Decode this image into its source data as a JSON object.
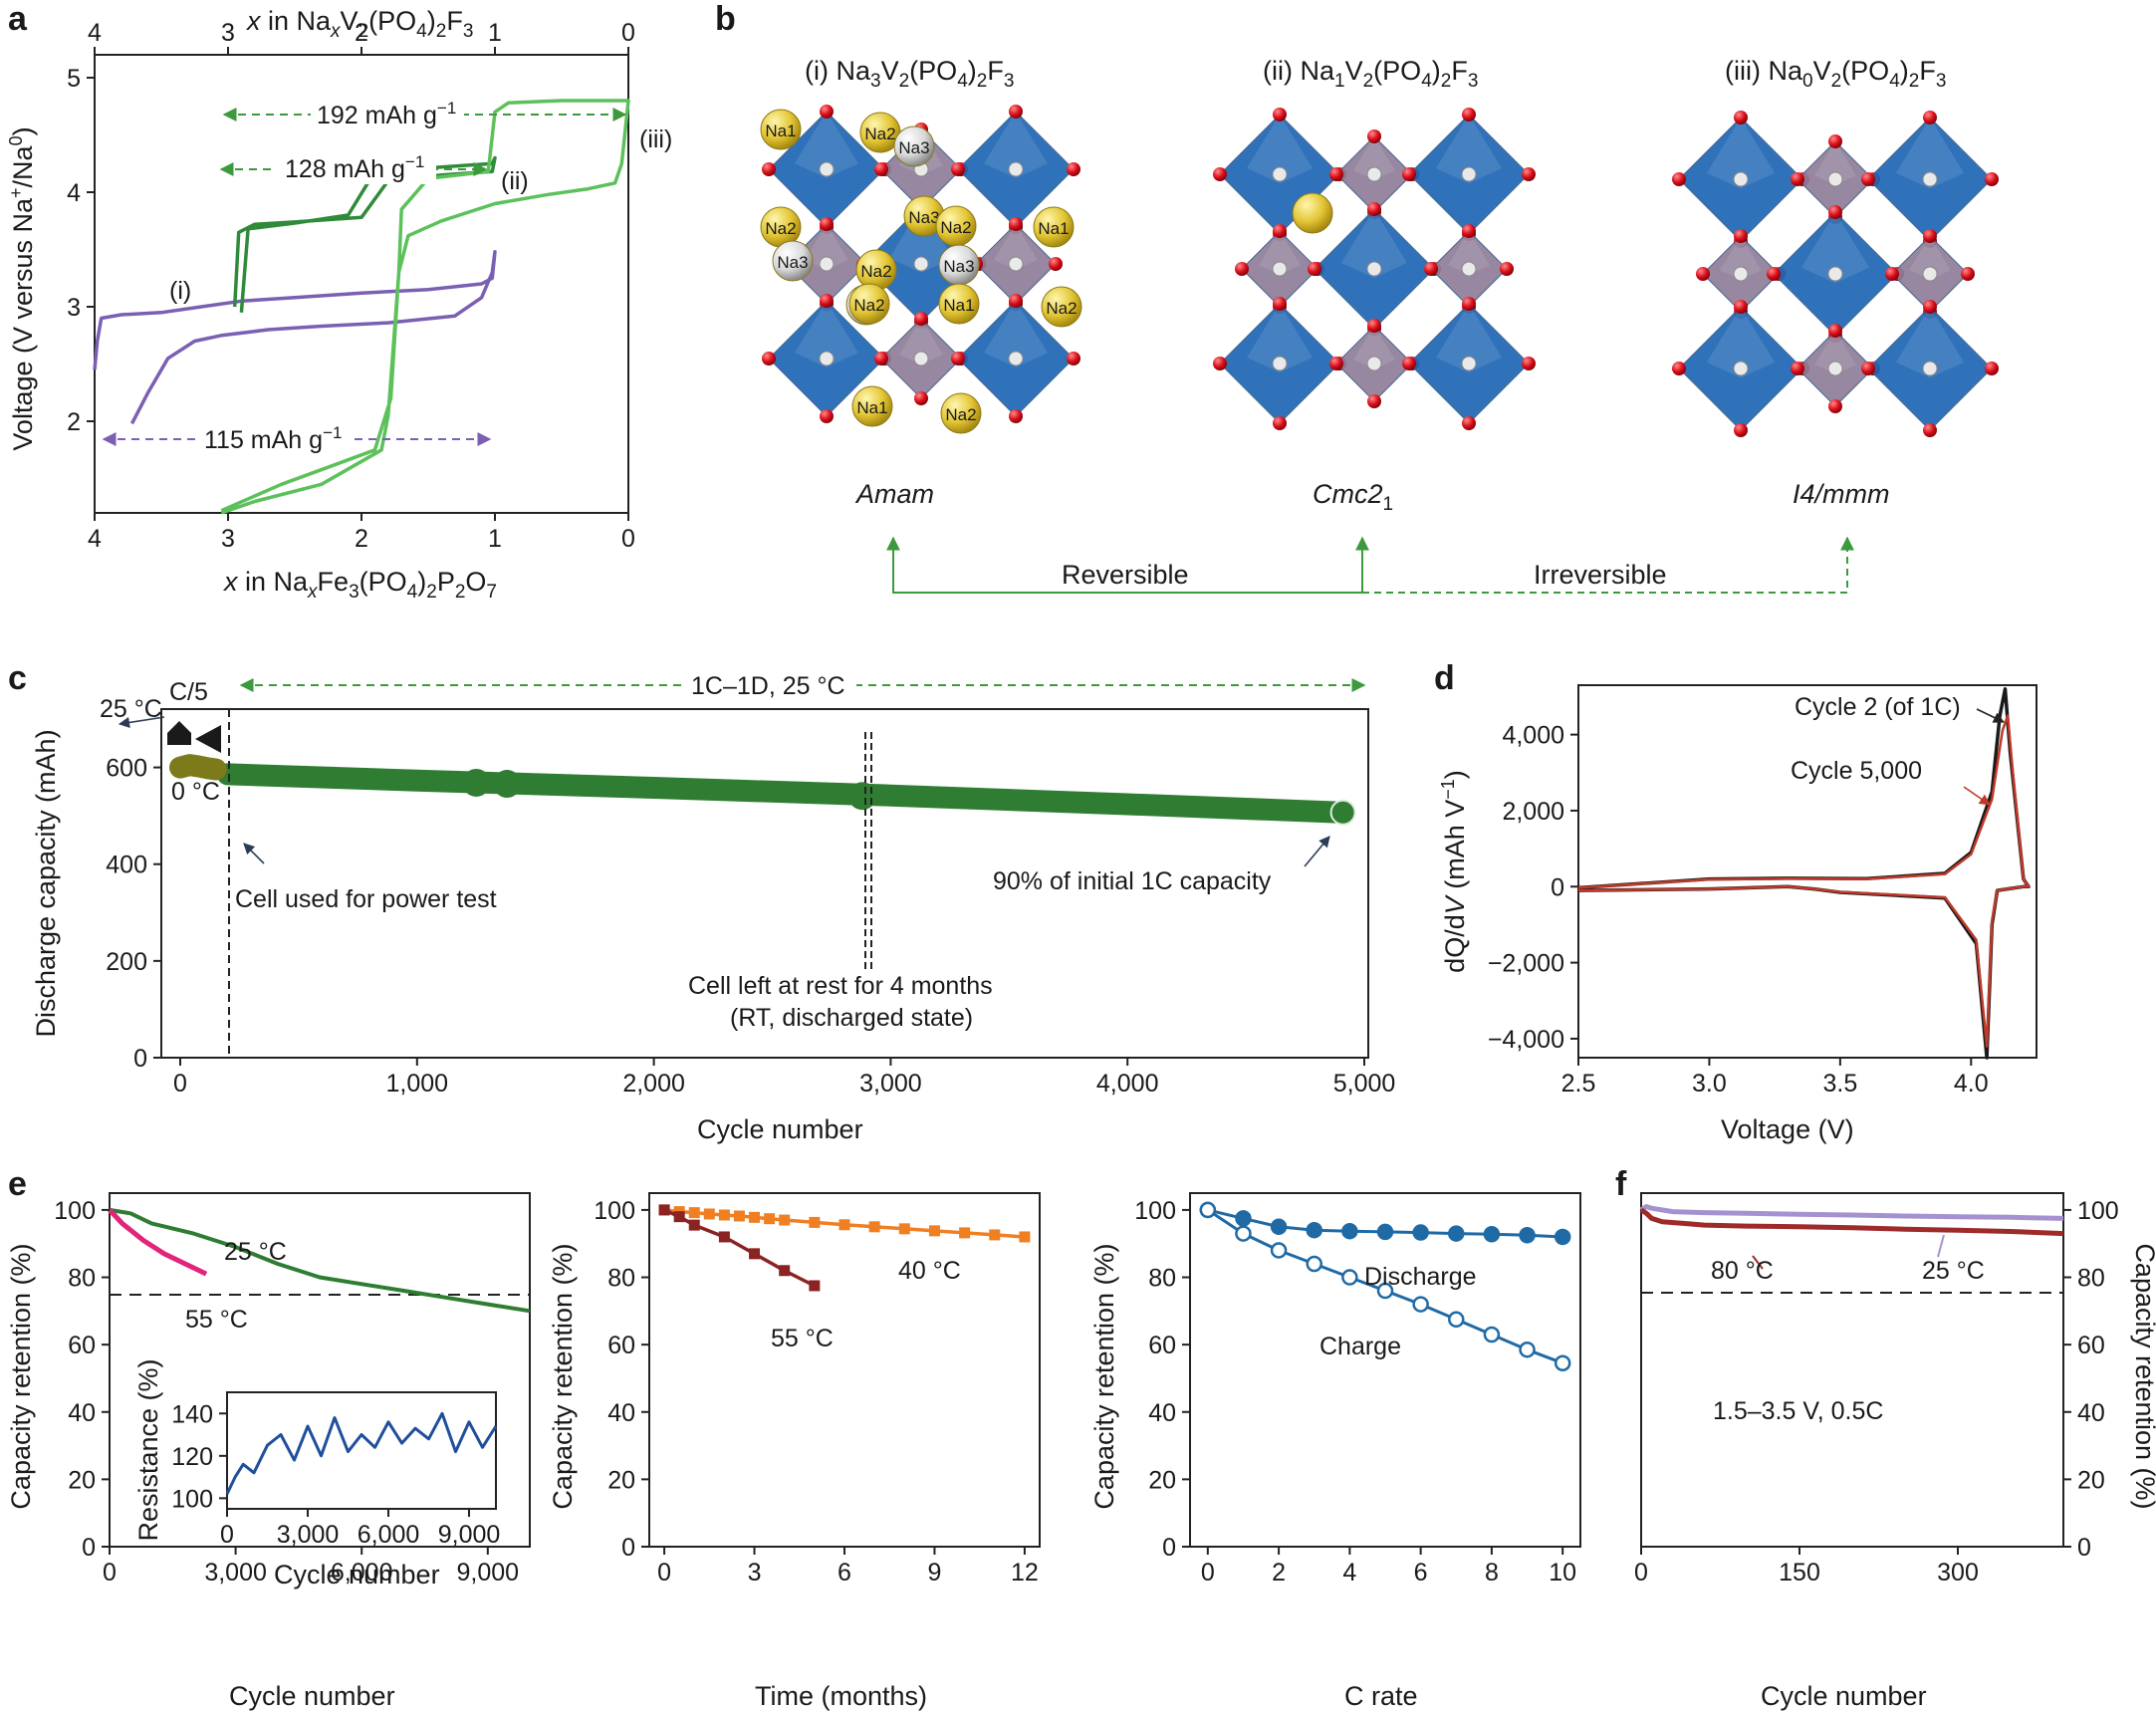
{
  "panel_labels": {
    "a": "a",
    "b": "b",
    "c": "c",
    "d": "d",
    "e": "e",
    "f": "f"
  },
  "chart_data": [
    {
      "id": "a",
      "type": "line",
      "xlabel_bottom": "x in NaxFe3(PO4)2P2O7",
      "xlabel_top": "x in NaxV2(PO4)2F3",
      "ylabel": "Voltage (V versus Na+/Na0)",
      "xlim": [
        4,
        0
      ],
      "ylim": [
        1.2,
        5.2
      ],
      "xticks": [
        "4",
        "3",
        "2",
        "1",
        "0"
      ],
      "yticks": [
        "2",
        "3",
        "4",
        "5"
      ],
      "series": [
        {
          "name": "(i)",
          "color": "#7b5fb3",
          "x": [
            3.72,
            3.6,
            3.45,
            3.25,
            3.05,
            2.9,
            2.7,
            2.3,
            1.8,
            1.3,
            1.1,
            1.02,
            1.0,
            1.02,
            1.1,
            1.5,
            2.0,
            2.5,
            2.9,
            3.2,
            3.5,
            3.8,
            3.95,
            3.98,
            4.0
          ],
          "y": [
            1.98,
            2.25,
            2.55,
            2.7,
            2.75,
            2.77,
            2.8,
            2.83,
            2.86,
            2.92,
            3.08,
            3.3,
            3.48,
            3.25,
            3.2,
            3.15,
            3.12,
            3.08,
            3.05,
            3.0,
            2.95,
            2.93,
            2.9,
            2.7,
            2.45
          ]
        },
        {
          "name": "(ii)",
          "color": "#2f8a3a",
          "x": [
            2.95,
            2.92,
            2.8,
            2.5,
            2.0,
            1.8,
            1.4,
            1.02,
            1.0,
            1.02,
            1.4,
            1.9,
            2.1,
            2.5,
            2.85,
            2.9
          ],
          "y": [
            3.0,
            3.65,
            3.72,
            3.74,
            3.78,
            4.1,
            4.15,
            4.18,
            4.3,
            4.25,
            4.22,
            4.18,
            3.8,
            3.73,
            3.68,
            2.95
          ]
        },
        {
          "name": "(iii)",
          "color": "#5cc15a",
          "x": [
            3.05,
            2.6,
            2.2,
            1.9,
            1.78,
            1.72,
            1.65,
            1.4,
            1.0,
            0.6,
            0.3,
            0.1,
            0.05,
            0.0,
            0.5,
            0.9,
            1.0,
            1.05,
            1.5,
            1.7,
            1.72,
            1.8,
            1.85,
            2.3,
            2.8,
            3.05
          ],
          "y": [
            1.22,
            1.45,
            1.62,
            1.75,
            2.2,
            3.3,
            3.62,
            3.75,
            3.9,
            3.98,
            4.03,
            4.08,
            4.25,
            4.8,
            4.8,
            4.78,
            4.7,
            4.18,
            4.12,
            3.85,
            3.3,
            2.05,
            1.75,
            1.45,
            1.3,
            1.2
          ]
        }
      ],
      "annotations": [
        "(i)",
        "(ii)",
        "(iii)",
        "192 mAh g−1",
        "128 mAh g−1",
        "115 mAh g−1"
      ]
    },
    {
      "id": "c",
      "type": "scatter",
      "xlabel": "Cycle number",
      "ylabel": "Discharge capacity (mAh)",
      "xlim": [
        0,
        5000
      ],
      "ylim": [
        0,
        700
      ],
      "xticks": [
        "0",
        "1,000",
        "2,000",
        "3,000",
        "4,000",
        "5,000"
      ],
      "yticks": [
        "0",
        "200",
        "400",
        "600"
      ],
      "series": [
        {
          "name": "1C–1D, 25 °C",
          "color": "#2e7d32",
          "x": [
            200,
            1000,
            2000,
            3000,
            4000,
            4900
          ],
          "y": [
            586,
            573,
            558,
            542,
            524,
            507
          ]
        },
        {
          "name": "0 °C",
          "color": "#7c7a1a",
          "x": [
            0,
            40,
            80,
            120,
            150
          ],
          "y": [
            600,
            605,
            602,
            598,
            596
          ]
        }
      ],
      "annotations": [
        "C/5",
        "1C–1D, 25 °C",
        "25 °C",
        "0 °C",
        "Cell used for power test",
        "Cell left at rest for 4 months",
        "(RT, discharged state)",
        "90% of initial 1C capacity"
      ]
    },
    {
      "id": "d",
      "type": "line",
      "xlabel": "Voltage (V)",
      "ylabel": "dQ/dV (mAh V−1)",
      "xlim": [
        2.5,
        4.25
      ],
      "ylim": [
        -4500,
        5300
      ],
      "xticks": [
        "2.5",
        "3.0",
        "3.5",
        "4.0"
      ],
      "yticks": [
        "−4,000",
        "−2,000",
        "0",
        "2,000",
        "4,000"
      ],
      "series": [
        {
          "name": "Cycle 2 (of 1C)",
          "color": "#1a1a1a",
          "x": [
            2.5,
            3.0,
            3.3,
            3.6,
            3.9,
            4.0,
            4.08,
            4.11,
            4.13,
            4.15,
            4.2,
            4.22,
            4.2,
            4.1,
            4.08,
            4.06,
            4.02,
            3.9,
            3.5,
            3.4,
            3.3,
            3.0,
            2.5
          ],
          "y": [
            -30,
            200,
            220,
            210,
            350,
            900,
            2500,
            4500,
            5200,
            3500,
            200,
            0,
            0,
            -100,
            -1000,
            -4500,
            -1500,
            -300,
            -150,
            -60,
            0,
            -60,
            -100
          ]
        },
        {
          "name": "Cycle 5,000",
          "color": "#c0392b",
          "x": [
            2.5,
            3.0,
            3.3,
            3.6,
            3.9,
            4.0,
            4.08,
            4.12,
            4.14,
            4.16,
            4.2,
            4.22,
            4.2,
            4.1,
            4.08,
            4.06,
            4.02,
            3.9,
            3.5,
            3.4,
            3.3,
            3.0,
            2.5
          ],
          "y": [
            -30,
            190,
            210,
            200,
            330,
            850,
            2300,
            4100,
            4500,
            3000,
            200,
            0,
            0,
            -100,
            -900,
            -4200,
            -1400,
            -280,
            -140,
            -60,
            0,
            -60,
            -100
          ]
        }
      ],
      "annotations": [
        "Cycle 2 (of 1C)",
        "Cycle 5,000"
      ]
    },
    {
      "id": "e1",
      "type": "line",
      "xlabel": "Cycle number",
      "ylabel": "Capacity retention (%)",
      "xlim": [
        0,
        10000
      ],
      "ylim": [
        0,
        105
      ],
      "xticks": [
        "0",
        "3,000",
        "6,000",
        "9,000"
      ],
      "yticks": [
        "0",
        "20",
        "40",
        "60",
        "80",
        "100"
      ],
      "series": [
        {
          "name": "25 °C",
          "color": "#2e7d32",
          "x": [
            0,
            500,
            1000,
            2000,
            3000,
            4000,
            5000,
            6000,
            7000,
            8000,
            9000,
            10000
          ],
          "y": [
            100,
            99,
            96,
            93,
            89,
            84,
            80,
            78,
            76,
            74,
            72,
            70
          ]
        },
        {
          "name": "55 °C",
          "color": "#e0257a",
          "x": [
            0,
            300,
            800,
            1300,
            1800,
            2300
          ],
          "y": [
            100,
            96,
            91,
            87,
            84,
            81
          ]
        }
      ],
      "reference_line": 80,
      "annotations": [
        "25 °C",
        "55 °C"
      ],
      "inset": {
        "xlabel": "Cycle number",
        "ylabel": "Resistance (%)",
        "xlim": [
          0,
          10000
        ],
        "ylim": [
          95,
          150
        ],
        "xticks": [
          "0",
          "3,000",
          "6,000",
          "9,000"
        ],
        "yticks": [
          "100",
          "120",
          "140"
        ],
        "color": "#1f4e9c",
        "x": [
          0,
          300,
          600,
          1000,
          1500,
          2000,
          2500,
          3000,
          3500,
          4000,
          4500,
          5000,
          5500,
          6000,
          6500,
          7000,
          7500,
          8000,
          8500,
          9000,
          9500,
          10000
        ],
        "y": [
          102,
          110,
          116,
          112,
          125,
          130,
          118,
          134,
          120,
          138,
          122,
          130,
          124,
          136,
          126,
          133,
          128,
          140,
          122,
          136,
          124,
          134
        ]
      }
    },
    {
      "id": "e2",
      "type": "line",
      "xlabel": "Time (months)",
      "ylabel": "Capacity retention (%)",
      "xlim": [
        -0.5,
        12.5
      ],
      "ylim": [
        0,
        105
      ],
      "xticks": [
        "0",
        "3",
        "6",
        "9",
        "12"
      ],
      "yticks": [
        "0",
        "20",
        "40",
        "60",
        "80",
        "100"
      ],
      "series": [
        {
          "name": "40 °C",
          "color": "#f07f22",
          "x": [
            0,
            0.5,
            1,
            1.5,
            2,
            2.5,
            3,
            3.5,
            4,
            5,
            6,
            7,
            8,
            9,
            10,
            11,
            12
          ],
          "y": [
            100,
            99.5,
            99.2,
            98.8,
            98.5,
            98.2,
            97.8,
            97.4,
            97.0,
            96.3,
            95.6,
            95.0,
            94.4,
            93.8,
            93.2,
            92.6,
            92.0
          ]
        },
        {
          "name": "55 °C",
          "color": "#8b2323",
          "x": [
            0,
            0.5,
            1,
            2,
            3,
            4,
            5
          ],
          "y": [
            100,
            98,
            95.5,
            92,
            87,
            82,
            77.5
          ]
        }
      ],
      "annotations": [
        "40 °C",
        "55 °C"
      ]
    },
    {
      "id": "e3",
      "type": "line",
      "xlabel": "C rate",
      "ylabel": "Capacity retention (%)",
      "xlim": [
        -0.5,
        10.5
      ],
      "ylim": [
        0,
        105
      ],
      "xticks": [
        "0",
        "2",
        "4",
        "6",
        "8",
        "10"
      ],
      "yticks": [
        "0",
        "20",
        "40",
        "60",
        "80",
        "100"
      ],
      "series": [
        {
          "name": "Discharge",
          "color": "#1f6aa5",
          "x": [
            0,
            1,
            2,
            3,
            4,
            5,
            6,
            7,
            8,
            9,
            10
          ],
          "y": [
            100,
            97.5,
            95.0,
            94.0,
            93.7,
            93.5,
            93.3,
            93.0,
            92.8,
            92.5,
            92.0
          ]
        },
        {
          "name": "Charge",
          "color": "#1f6aa5",
          "x": [
            0,
            1,
            2,
            3,
            4,
            5,
            6,
            7,
            8,
            9,
            10
          ],
          "y": [
            100,
            93,
            88,
            84,
            80,
            76,
            72,
            67.5,
            63,
            58.5,
            54.5
          ]
        }
      ],
      "annotations": [
        "Discharge",
        "Charge"
      ]
    },
    {
      "id": "f",
      "type": "line",
      "xlabel": "Cycle number",
      "ylabel": "Capacity retention (%)",
      "xlim": [
        0,
        400
      ],
      "ylim": [
        0,
        105
      ],
      "xticks": [
        "0",
        "150",
        "300"
      ],
      "yticks": [
        "0",
        "20",
        "40",
        "60",
        "80",
        "100"
      ],
      "series": [
        {
          "name": "25 °C",
          "color": "#a591d0",
          "x": [
            0,
            5,
            10,
            30,
            60,
            100,
            150,
            200,
            250,
            300,
            350,
            400
          ],
          "y": [
            100,
            101,
            100.5,
            99.5,
            99.2,
            99.0,
            98.7,
            98.5,
            98.2,
            98.0,
            97.8,
            97.5
          ]
        },
        {
          "name": "80 °C",
          "color": "#9e2a2a",
          "x": [
            0,
            5,
            10,
            20,
            40,
            60,
            100,
            150,
            200,
            250,
            300,
            350,
            400
          ],
          "y": [
            100,
            99,
            97.5,
            96.5,
            96,
            95.5,
            95.2,
            95.0,
            94.7,
            94.3,
            94.0,
            93.6,
            93.0
          ]
        }
      ],
      "reference_line": 80,
      "annotations": [
        "80 °C",
        "25 °C",
        "1.5–3.5 V, 0.5C"
      ]
    }
  ],
  "panel_b": {
    "structures": [
      {
        "label": "(i) Na3V2(PO4)2F3",
        "space_group": "Amam",
        "sodium_labels": [
          "Na1",
          "Na2",
          "Na3",
          "Na2",
          "Na3",
          "Na3",
          "Na2",
          "Na1",
          "Na2",
          "Na3",
          "Na3",
          "Na2",
          "Na1",
          "Na2",
          "Na1",
          "Na2"
        ]
      },
      {
        "label": "(ii) Na1V2(PO4)2F3",
        "space_group": "Cmc21"
      },
      {
        "label": "(iii) Na0V2(PO4)2F3",
        "space_group": "I4/mmm"
      }
    ],
    "transitions": {
      "reversible": "Reversible",
      "irreversible": "Irreversible"
    },
    "colors": {
      "vo6": "#1f67b5",
      "po4": "#8f7d98",
      "oxygen": "#d90f1b",
      "na": "#e3c634"
    }
  }
}
